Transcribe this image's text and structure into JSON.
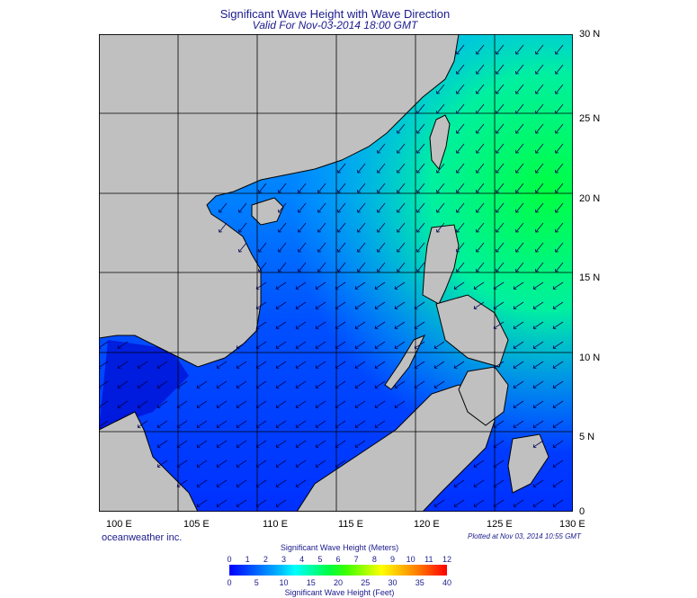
{
  "header": {
    "title": "Significant Wave Height with Wave Direction",
    "subtitle": "Valid For Nov-03-2014 18:00 GMT"
  },
  "axes": {
    "lat_labels": [
      "30 N",
      "25 N",
      "20 N",
      "15 N",
      "10 N",
      "5 N",
      "0"
    ],
    "lon_labels": [
      "100 E",
      "105 E",
      "110 E",
      "115 E",
      "120 E",
      "125 E",
      "130 E"
    ]
  },
  "footer": {
    "credit": "oceanweather inc.",
    "plotted": "Plotted at Nov 03, 2014 10:55 GMT"
  },
  "legend": {
    "title_meters": "Significant Wave Height (Meters)",
    "title_feet": "Significant Wave Height (Feet)",
    "ticks_meters": [
      "0",
      "1",
      "2",
      "3",
      "4",
      "5",
      "6",
      "7",
      "8",
      "9",
      "10",
      "11",
      "12"
    ],
    "ticks_feet": [
      "0",
      "5",
      "10",
      "15",
      "20",
      "25",
      "30",
      "35",
      "40"
    ]
  },
  "colors": {
    "land": "#c0c0c0",
    "sea_low": "#0000ff",
    "sea_mid": "#00ffff",
    "sea_high": "#00ff40",
    "arrow": "#000050"
  }
}
